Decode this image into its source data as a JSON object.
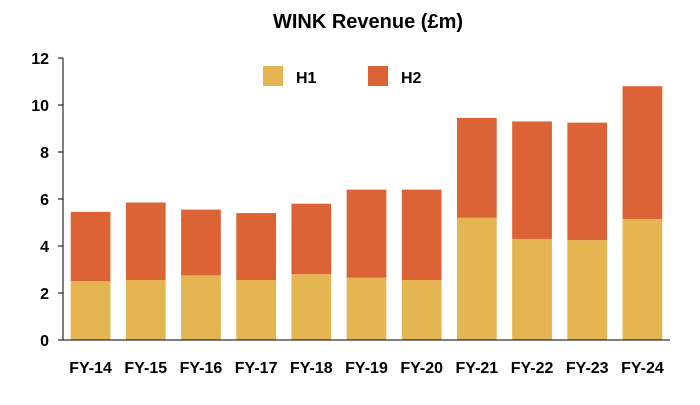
{
  "chart_data": {
    "type": "bar",
    "stacked": true,
    "title": "WINK Revenue (£m)",
    "xlabel": "",
    "ylabel": "",
    "categories": [
      "FY-14",
      "FY-15",
      "FY-16",
      "FY-17",
      "FY-18",
      "FY-19",
      "FY-20",
      "FY-21",
      "FY-22",
      "FY-23",
      "FY-24"
    ],
    "series": [
      {
        "name": "H1",
        "color": "#e5b552",
        "values": [
          2.5,
          2.55,
          2.75,
          2.55,
          2.8,
          2.65,
          2.55,
          5.2,
          4.3,
          4.25,
          5.15
        ]
      },
      {
        "name": "H2",
        "color": "#dc6335",
        "values": [
          2.95,
          3.3,
          2.8,
          2.85,
          3.0,
          3.75,
          3.85,
          4.25,
          5.0,
          5.0,
          5.65
        ]
      }
    ],
    "ylim": [
      0,
      12
    ],
    "yticks": [
      "0",
      "2",
      "4",
      "6",
      "8",
      "10",
      "12"
    ],
    "grid": false,
    "legend_position": "top-center"
  }
}
